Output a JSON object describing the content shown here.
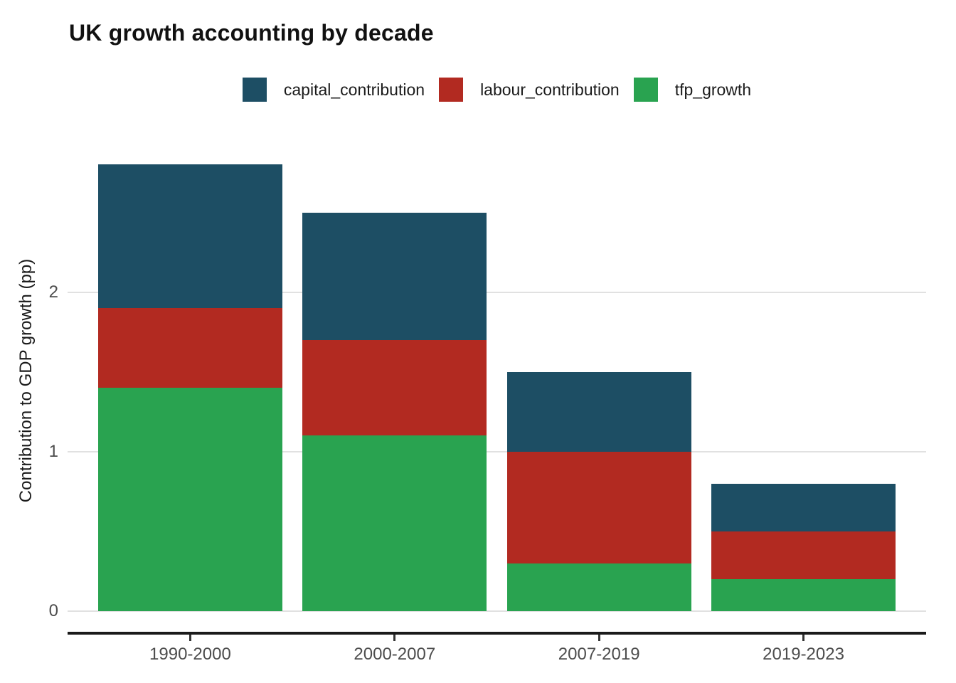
{
  "title": "UK growth accounting by decade",
  "legend": {
    "items": [
      {
        "label": "capital_contribution",
        "color": "#1d4e64"
      },
      {
        "label": "labour_contribution",
        "color": "#b22a21"
      },
      {
        "label": "tfp_growth",
        "color": "#29a350"
      }
    ]
  },
  "chart_data": {
    "type": "bar",
    "stacked": true,
    "title": "UK growth accounting by decade",
    "ylabel": "Contribution to GDP growth (pp)",
    "xlabel": "",
    "categories": [
      "1990-2000",
      "2000-2007",
      "2007-2019",
      "2019-2023"
    ],
    "series": [
      {
        "name": "tfp_growth",
        "color": "#29a350",
        "values": [
          1.4,
          1.1,
          0.3,
          0.2
        ]
      },
      {
        "name": "labour_contribution",
        "color": "#b22a21",
        "values": [
          0.5,
          0.6,
          0.7,
          0.3
        ]
      },
      {
        "name": "capital_contribution",
        "color": "#1d4e64",
        "values": [
          0.9,
          0.8,
          0.5,
          0.3
        ]
      }
    ],
    "stack_order": "bottom to top: tfp_growth, labour_contribution, capital_contribution",
    "totals": [
      2.8,
      2.5,
      1.5,
      0.8
    ],
    "yticks": [
      0,
      1,
      2
    ],
    "ylim": [
      0,
      3
    ],
    "grid": "horizontal major gridlines only",
    "legend_position": "top-center",
    "bar_width_fraction": 0.9
  },
  "colors": {
    "background": "#ffffff",
    "gridline": "#e1e1e1",
    "axis_line": "#1a1a1a",
    "tick_label": "#4d4d4d",
    "title": "#111111"
  }
}
